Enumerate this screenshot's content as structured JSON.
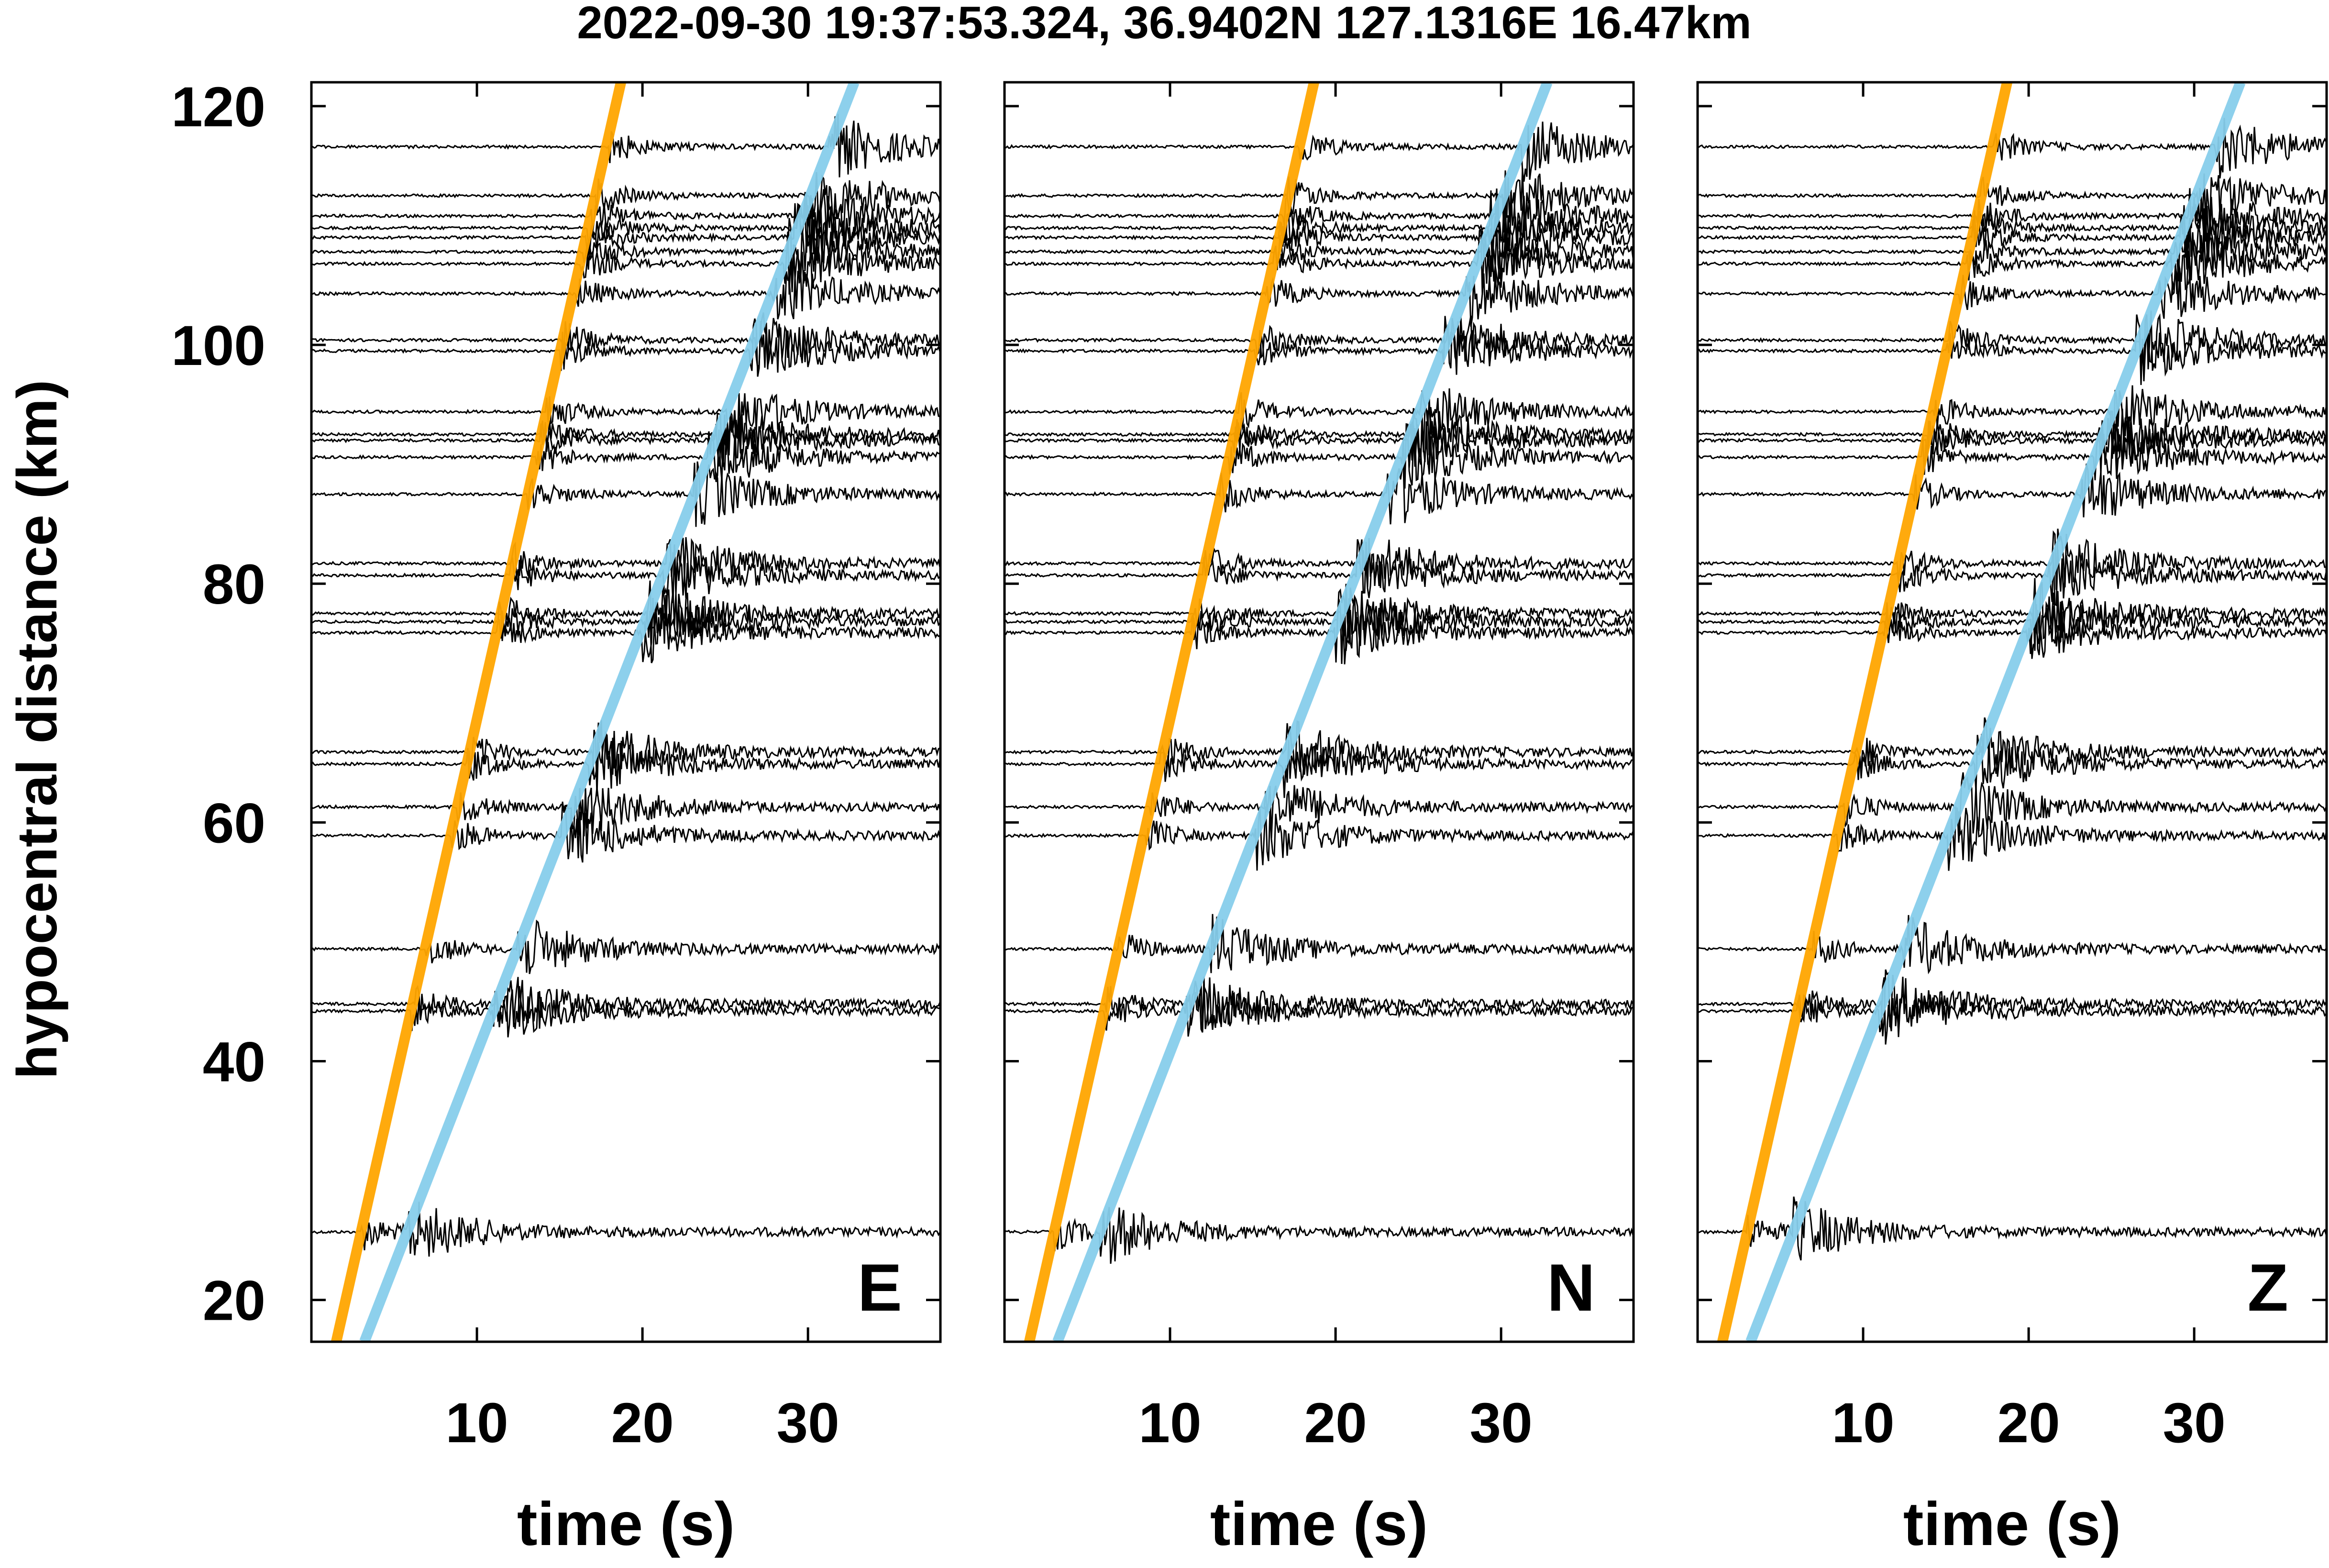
{
  "chart_data": {
    "type": "line",
    "title": "2022-09-30 19:37:53.324, 36.9402N 127.1316E 16.47km",
    "ylabel": "hypocentral distance (km)",
    "xlabel": "time (s)",
    "xlim": [
      0,
      38
    ],
    "ylim": [
      16.5,
      122
    ],
    "xticks": [
      10,
      20,
      30
    ],
    "yticks": [
      20,
      40,
      60,
      80,
      100,
      120
    ],
    "grid": false,
    "panels": [
      {
        "label": "E"
      },
      {
        "label": "N"
      },
      {
        "label": "Z"
      }
    ],
    "trace_distances_km": [
      25.7,
      44.2,
      44.8,
      49.4,
      58.9,
      61.3,
      64.9,
      65.9,
      75.9,
      76.8,
      77.5,
      80.7,
      81.7,
      87.5,
      90.6,
      92.0,
      92.5,
      94.4,
      99.5,
      100.4,
      104.3,
      106.8,
      107.8,
      109.0,
      109.8,
      110.8,
      112.5,
      116.6
    ],
    "arrival_lines": [
      {
        "phase": "P",
        "color": "#ffa500",
        "points": [
          [
            1.5,
            16.5
          ],
          [
            18.7,
            122
          ]
        ]
      },
      {
        "phase": "S",
        "color": "#87ceeb",
        "points": [
          [
            3.2,
            16.5
          ],
          [
            32.8,
            122
          ]
        ]
      }
    ]
  }
}
